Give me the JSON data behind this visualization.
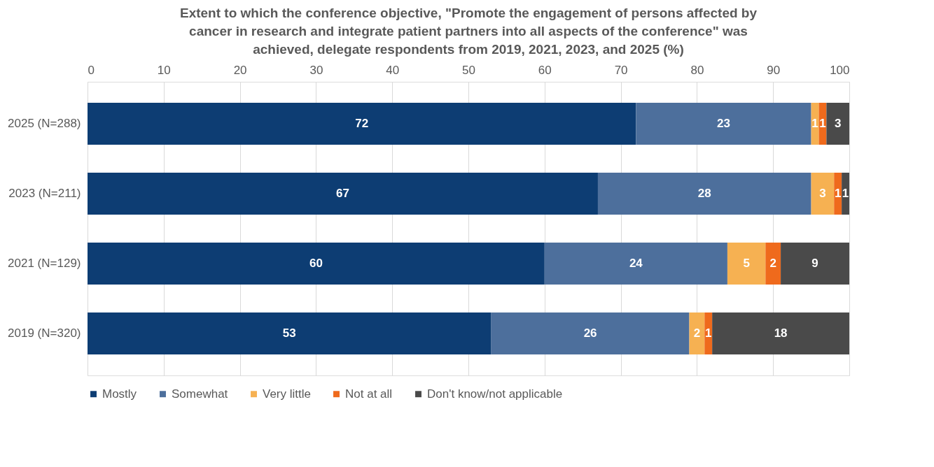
{
  "chart_data": {
    "type": "bar",
    "orientation": "horizontal",
    "stacked": true,
    "data_labels": true,
    "grid": "x",
    "legend": "bottom",
    "title": "Extent to which the conference objective, \"Promote the engagement of persons affected by cancer in research and integrate patient partners into all aspects of the conference\" was achieved, delegate respondents from 2019, 2021, 2023, and 2025 (%)",
    "categories": [
      "2025 (N=288)",
      "2023 (N=211)",
      "2021 (N=129)",
      "2019 (N=320)"
    ],
    "xlim": [
      0,
      100
    ],
    "xticks": [
      0,
      10,
      20,
      30,
      40,
      50,
      60,
      70,
      80,
      90,
      100
    ],
    "series": [
      {
        "name": "Mostly",
        "color": "#0d3d73",
        "values": [
          72,
          67,
          60,
          53
        ]
      },
      {
        "name": "Somewhat",
        "color": "#4d6f9c",
        "values": [
          23,
          28,
          24,
          26
        ]
      },
      {
        "name": "Very little",
        "color": "#f6b152",
        "values": [
          1,
          3,
          5,
          2
        ]
      },
      {
        "name": "Not at all",
        "color": "#ef6a1c",
        "values": [
          1,
          1,
          2,
          1
        ]
      },
      {
        "name": "Don't know/not applicable",
        "color": "#4a4a4a",
        "values": [
          3,
          1,
          9,
          18
        ]
      }
    ]
  }
}
